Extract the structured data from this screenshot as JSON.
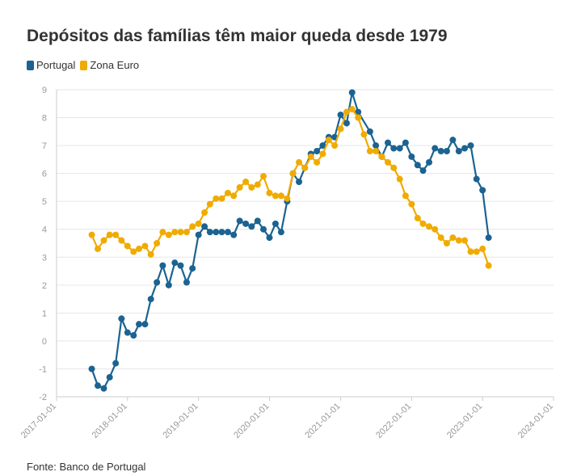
{
  "title": "Depósitos das famílias têm maior queda desde 1979",
  "source": "Fonte: Banco de Portugal",
  "chart_data": {
    "type": "line",
    "title": "Depósitos das famílias têm maior queda desde 1979",
    "xlabel": "",
    "ylabel": "",
    "ylim": [
      -2,
      9
    ],
    "xlim": [
      "2017-01-01",
      "2024-01-01"
    ],
    "yticks": [
      "-2",
      "-1",
      "0",
      "1",
      "2",
      "3",
      "4",
      "5",
      "6",
      "7",
      "8",
      "9"
    ],
    "xticks": [
      "2017-01-01",
      "2018-01-01",
      "2019-01-01",
      "2020-01-01",
      "2021-01-01",
      "2022-01-01",
      "2023-01-01",
      "2024-01-01"
    ],
    "grid": "horizontal",
    "legend_position": "top-left",
    "start_month": "2017-07",
    "series": [
      {
        "name": "Portugal",
        "color": "#1b6391",
        "values": [
          -1.0,
          -1.6,
          -1.7,
          -1.3,
          -0.8,
          0.8,
          0.3,
          0.2,
          0.6,
          0.6,
          1.5,
          2.1,
          2.7,
          2.0,
          2.8,
          2.7,
          2.1,
          2.6,
          3.8,
          4.1,
          3.9,
          3.9,
          3.9,
          3.9,
          3.8,
          4.3,
          4.2,
          4.1,
          4.3,
          4.0,
          3.7,
          4.2,
          3.9,
          5.0,
          6.0,
          5.7,
          6.2,
          6.7,
          6.8,
          7.0,
          7.3,
          7.3,
          8.1,
          7.8,
          8.9,
          8.2,
          null,
          7.5,
          7.0,
          6.6,
          7.1,
          6.9,
          6.9,
          7.1,
          6.6,
          6.3,
          6.1,
          6.4,
          6.9,
          6.8,
          6.8,
          7.2,
          6.8,
          6.9,
          7.0,
          5.8,
          5.4,
          3.7
        ]
      },
      {
        "name": "Zona Euro",
        "color": "#f0ab00",
        "values": [
          3.8,
          3.3,
          3.6,
          3.8,
          3.8,
          3.6,
          3.4,
          3.2,
          3.3,
          3.4,
          3.1,
          3.5,
          3.9,
          3.8,
          3.9,
          3.9,
          3.9,
          4.1,
          4.2,
          4.6,
          4.9,
          5.1,
          5.1,
          5.3,
          5.2,
          5.5,
          5.7,
          5.5,
          5.6,
          5.9,
          5.3,
          5.2,
          5.2,
          5.1,
          6.0,
          6.4,
          6.2,
          6.6,
          6.4,
          6.7,
          7.2,
          7.0,
          7.6,
          8.2,
          8.3,
          8.0,
          7.4,
          6.8,
          6.8,
          6.6,
          6.4,
          6.2,
          5.8,
          5.2,
          4.9,
          4.4,
          4.2,
          4.1,
          4.0,
          3.7,
          3.5,
          3.7,
          3.6,
          3.6,
          3.2,
          3.2,
          3.3,
          2.7
        ]
      }
    ]
  }
}
